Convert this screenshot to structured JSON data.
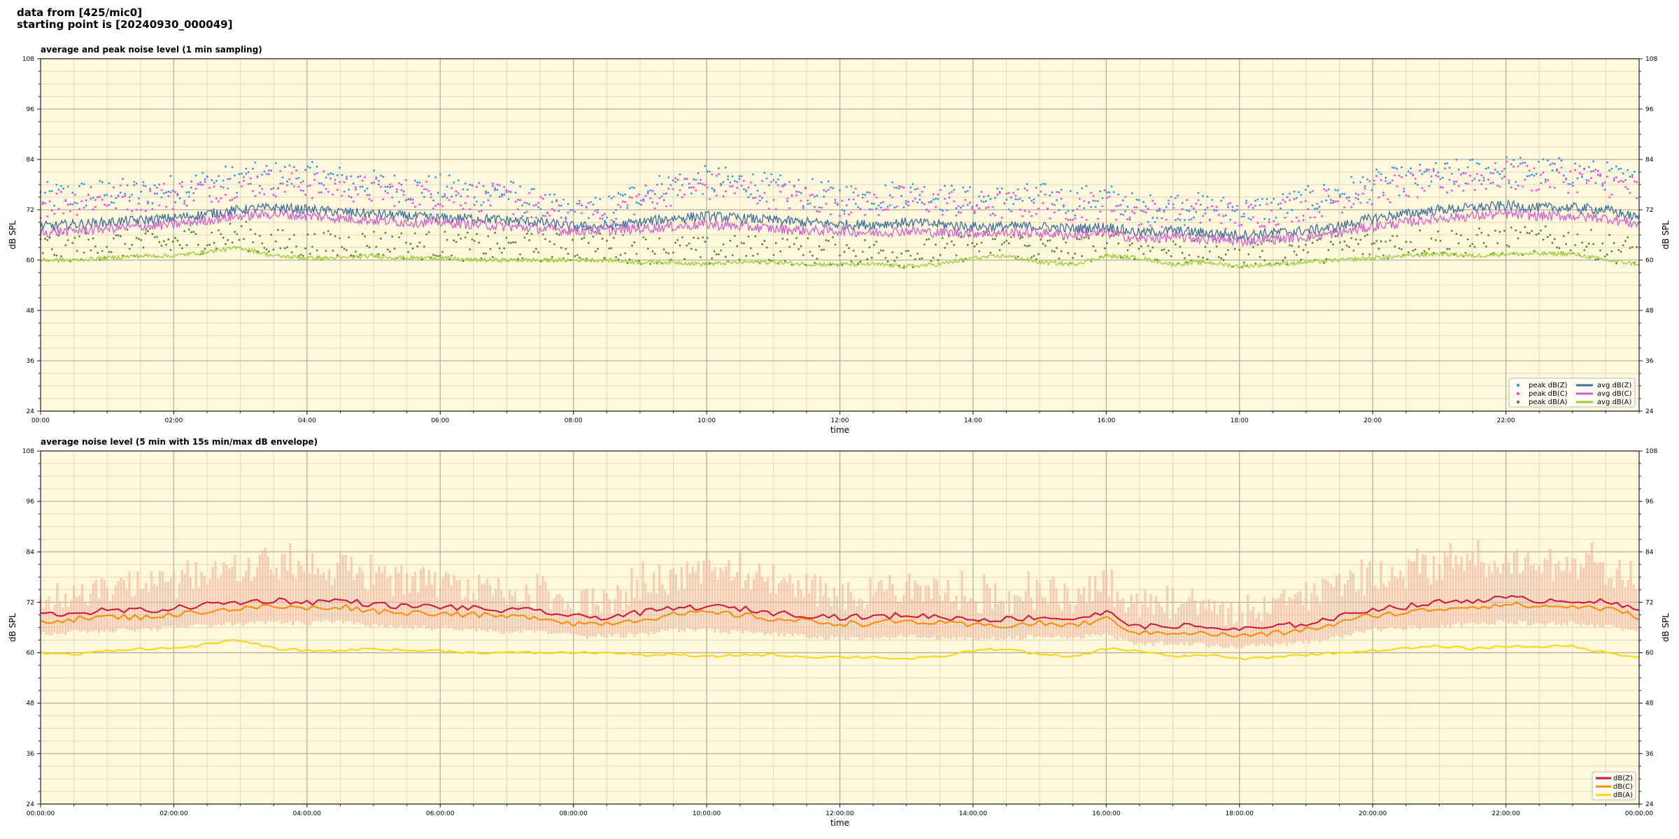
{
  "header": {
    "line1": "data from [425/mic0]",
    "line2": "starting point is [20240930_000049]"
  },
  "colors": {
    "plot_bg": "#fff8dc",
    "peak_z": "#1f9be8",
    "peak_c": "#ff3ce6",
    "peak_a": "#4a8a2e",
    "avg_z": "#3b6f9e",
    "avg_c": "#d35fcf",
    "avg_a": "#9acd32",
    "env": "#f4b8a2",
    "dbz": "#d2143c",
    "dbc": "#ff8c00",
    "dba": "#ffd700"
  },
  "chart_data": [
    {
      "type": "line",
      "title": "average and peak noise level (1 min sampling)",
      "xlabel": "time",
      "ylabel": "dB SPL",
      "ylabel_right": "dB SPL",
      "xlim": [
        0,
        24
      ],
      "ylim": [
        24,
        108
      ],
      "yticks": [
        "24",
        "36",
        "48",
        "60",
        "72",
        "84",
        "96",
        "108"
      ],
      "xticks": [
        "00:00",
        "02:00",
        "04:00",
        "06:00",
        "08:00",
        "10:00",
        "12:00",
        "14:00",
        "16:00",
        "18:00",
        "20:00",
        "22:00"
      ],
      "grid": true,
      "legend": "lower-right",
      "legend_entries": [
        "peak dB(Z)",
        "peak dB(C)",
        "peak dB(A)",
        "avg dB(Z)",
        "avg dB(C)",
        "avg dB(A)"
      ],
      "x_hours": [
        0,
        0.5,
        1,
        1.5,
        2,
        2.5,
        3,
        3.5,
        4,
        4.5,
        5,
        5.5,
        6,
        6.5,
        7,
        7.5,
        8,
        8.5,
        9,
        9.5,
        10,
        10.5,
        11,
        11.5,
        12,
        12.5,
        13,
        13.5,
        14,
        14.5,
        15,
        15.5,
        16,
        16.5,
        17,
        17.5,
        18,
        18.5,
        19,
        19.5,
        20,
        20.5,
        21,
        21.5,
        22,
        22.5,
        23,
        23.5,
        24
      ],
      "series": [
        {
          "name": "avg dB(Z)",
          "values": [
            68,
            68.5,
            69,
            69.5,
            70,
            71,
            72,
            72.5,
            72,
            71.5,
            71,
            70.5,
            70,
            70,
            69.5,
            69,
            68,
            68,
            69,
            70,
            70.5,
            70,
            69.5,
            69,
            68.5,
            68.5,
            69,
            68.5,
            68,
            68,
            68,
            67.5,
            68,
            66.5,
            67,
            66.5,
            66,
            66.5,
            67,
            68,
            70,
            71,
            72,
            72.5,
            73,
            72.5,
            72.5,
            72,
            70
          ]
        },
        {
          "name": "avg dB(C)",
          "values": [
            66.5,
            67,
            67.5,
            68,
            68.5,
            69.5,
            70.5,
            71,
            70.5,
            70,
            69.5,
            69,
            69,
            68.5,
            68,
            67.5,
            67,
            67,
            67.5,
            68,
            68.5,
            68,
            67.5,
            67,
            67,
            66.5,
            67,
            66.5,
            66.5,
            66.5,
            66.5,
            66,
            66.5,
            65,
            65.5,
            65,
            64.5,
            65,
            65.5,
            66.5,
            68,
            69,
            70,
            70.5,
            71,
            70.5,
            70.5,
            70,
            68.5
          ]
        },
        {
          "name": "avg dB(A)",
          "values": [
            60,
            60,
            60.5,
            61,
            61,
            62,
            63,
            61,
            60.5,
            60.5,
            61,
            60.5,
            60.5,
            60,
            60,
            60,
            60,
            60,
            59.5,
            59.5,
            59,
            59.5,
            59.5,
            59,
            59,
            59,
            58.5,
            59,
            60.5,
            61,
            59.5,
            59,
            61,
            60.5,
            59,
            59.5,
            58.5,
            59,
            59.5,
            60,
            60.5,
            61,
            61.5,
            61,
            61.5,
            61.5,
            61.5,
            60,
            59
          ]
        },
        {
          "name": "peak dB(Z)",
          "values": [
            74,
            74.5,
            75,
            75,
            76,
            77.5,
            78.5,
            79,
            79,
            78,
            77,
            76,
            76,
            75.5,
            75,
            72,
            70,
            71,
            75,
            77,
            78,
            77.5,
            76,
            75,
            74,
            74,
            75,
            74,
            73,
            73.5,
            74,
            73,
            74,
            71,
            72,
            71.5,
            70.5,
            71.5,
            73,
            75,
            77,
            78,
            79,
            80,
            80.5,
            80,
            80,
            79,
            77
          ]
        },
        {
          "name": "peak dB(C)",
          "values": [
            72.5,
            73,
            73.5,
            74,
            74.5,
            76,
            77,
            77.5,
            77,
            76.5,
            75.5,
            75,
            74.5,
            74,
            73.5,
            71,
            69,
            70,
            73.5,
            75.5,
            76.5,
            76,
            74.5,
            73.5,
            73,
            72.5,
            73.5,
            73,
            72,
            72,
            72.5,
            71.5,
            72.5,
            70,
            70.5,
            70,
            69.5,
            70.5,
            72,
            73.5,
            75.5,
            76.5,
            77.5,
            78.5,
            79,
            78.5,
            78.5,
            77.5,
            75.5
          ]
        },
        {
          "name": "peak dB(A)",
          "values": [
            62,
            62,
            62.5,
            63,
            63,
            64,
            65,
            63,
            62.5,
            62.5,
            63,
            62.5,
            62.5,
            62,
            62,
            62,
            62,
            62,
            61.5,
            61.5,
            61,
            61.5,
            61.5,
            61,
            61,
            61,
            60.5,
            61,
            62.5,
            63,
            61.5,
            61,
            63,
            62.5,
            61,
            61.5,
            60.5,
            61,
            61.5,
            62,
            62.5,
            63,
            63.5,
            63,
            63.5,
            63.5,
            63.5,
            62,
            61
          ]
        }
      ]
    },
    {
      "type": "line",
      "title": "average noise level (5 min with 15s min/max dB envelope)",
      "xlabel": "time",
      "ylabel": "dB SPL",
      "ylabel_right": "dB SPL",
      "xlim": [
        0,
        24
      ],
      "ylim": [
        24,
        108
      ],
      "yticks": [
        "24",
        "36",
        "48",
        "60",
        "72",
        "84",
        "96",
        "108"
      ],
      "xticks": [
        "00:00:00",
        "02:00:00",
        "04:00:00",
        "06:00:00",
        "08:00:00",
        "10:00:00",
        "12:00:00",
        "14:00:00",
        "16:00:00",
        "18:00:00",
        "20:00:00",
        "22:00:00",
        "00:00:00"
      ],
      "grid": true,
      "legend": "lower-right",
      "legend_entries": [
        "dB(Z)",
        "dB(C)",
        "dB(A)"
      ],
      "x_hours": [
        0,
        0.5,
        1,
        1.5,
        2,
        2.5,
        3,
        3.5,
        4,
        4.5,
        5,
        5.5,
        6,
        6.5,
        7,
        7.5,
        8,
        8.5,
        9,
        9.5,
        10,
        10.5,
        11,
        11.5,
        12,
        12.5,
        13,
        13.5,
        14,
        14.5,
        15,
        15.5,
        16,
        16.5,
        17,
        17.5,
        18,
        18.5,
        19,
        19.5,
        20,
        20.5,
        21,
        21.5,
        22,
        22.5,
        23,
        23.5,
        24
      ],
      "series": [
        {
          "name": "dB(Z)",
          "values": [
            69,
            69.5,
            70,
            70,
            70.5,
            71.5,
            72,
            72.5,
            72,
            72.5,
            71.5,
            71,
            71,
            70.5,
            70,
            70,
            68.5,
            68.5,
            69.5,
            70.5,
            71,
            70.5,
            69.5,
            69,
            68.5,
            68.5,
            69,
            68.5,
            68,
            68,
            68.5,
            68,
            69.5,
            66,
            66.5,
            66,
            65.5,
            66,
            67,
            68.5,
            70.5,
            71,
            72,
            72.5,
            73,
            72.5,
            72.5,
            72,
            70
          ]
        },
        {
          "name": "dB(C)",
          "values": [
            67.5,
            68,
            68.5,
            68.5,
            69,
            70,
            70.5,
            71,
            70.5,
            71,
            70,
            69.5,
            69.5,
            69,
            68.5,
            68.5,
            67,
            67,
            68,
            69,
            69.5,
            69,
            68,
            67.5,
            67,
            67,
            67.5,
            67,
            66.5,
            66.5,
            67,
            66.5,
            68,
            64.5,
            65,
            64.5,
            64,
            64.5,
            65.5,
            67,
            69,
            69.5,
            70.5,
            71,
            71.5,
            71,
            71,
            70.5,
            68.5
          ]
        },
        {
          "name": "dB(A)",
          "values": [
            60,
            59.5,
            60.5,
            61,
            61,
            62,
            63,
            61,
            60.5,
            60.5,
            61,
            60.5,
            60.5,
            60,
            60,
            60,
            60,
            60,
            59.5,
            59.5,
            59,
            59.5,
            59.5,
            59,
            59,
            59,
            58.5,
            59,
            60.5,
            61,
            59.5,
            59,
            61,
            60.5,
            59,
            59.5,
            58.5,
            59,
            59.5,
            60,
            60.5,
            61,
            61.5,
            61,
            61.5,
            61.5,
            61.5,
            60,
            59
          ]
        }
      ],
      "envelope": {
        "min": [
          65,
          65.5,
          66,
          66,
          66.5,
          67,
          67.5,
          68,
          67.5,
          68,
          67,
          66.5,
          66.5,
          66,
          65.5,
          66,
          64.5,
          64.5,
          65,
          66,
          66,
          65.5,
          65,
          64.5,
          64,
          64,
          64.5,
          64,
          64,
          64,
          64.5,
          64,
          65,
          62.5,
          63,
          62.5,
          62,
          62.5,
          63,
          64.5,
          66,
          66.5,
          67,
          67.5,
          68,
          67.5,
          67.5,
          67,
          66
        ],
        "max": [
          77,
          78,
          78,
          79,
          80,
          82,
          84,
          85,
          84,
          84,
          82,
          81,
          80,
          79,
          78,
          77,
          75,
          76,
          80,
          82,
          84,
          83,
          81,
          79,
          78,
          78,
          80,
          79,
          77,
          77,
          78,
          77,
          80,
          75,
          76,
          75,
          74,
          75,
          77,
          79,
          82,
          83,
          84,
          85,
          86,
          85,
          85,
          84,
          81
        ]
      }
    }
  ]
}
